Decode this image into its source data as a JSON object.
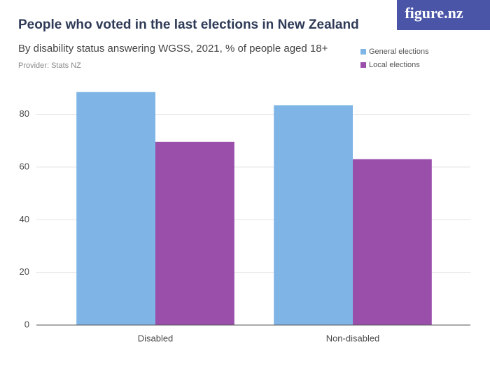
{
  "logo": "figure.nz",
  "chart_data": {
    "type": "bar",
    "title": "People who voted in the last elections in New Zealand",
    "subtitle": "By disability status answering WGSS, 2021, % of people aged 18+",
    "provider": "Provider: Stats NZ",
    "categories": [
      "Disabled",
      "Non-disabled"
    ],
    "series": [
      {
        "name": "General elections",
        "color": "#7eb5e6",
        "values": [
          88.5,
          83.5
        ]
      },
      {
        "name": "Local elections",
        "color": "#9a4fab",
        "values": [
          69.6,
          63.0
        ]
      }
    ],
    "ylim": [
      0,
      90
    ],
    "yticks": [
      0,
      20,
      40,
      60,
      80
    ],
    "grid": true,
    "legend": "top-right"
  }
}
